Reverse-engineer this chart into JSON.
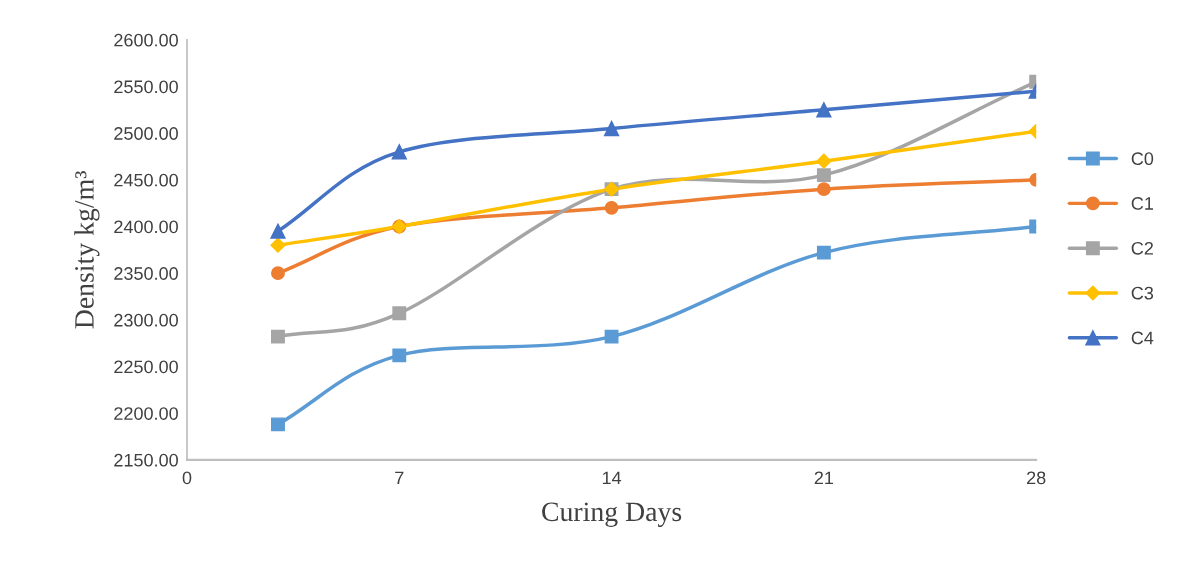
{
  "chart_data": {
    "type": "line",
    "xlabel": "Curing Days",
    "ylabel": "Density kg/m³",
    "x": [
      3,
      7,
      14,
      21,
      28
    ],
    "series": [
      {
        "name": "C0",
        "color": "#5b9bd5",
        "marker": "square",
        "values": [
          2188,
          2262,
          2282,
          2372,
          2400
        ]
      },
      {
        "name": "C1",
        "color": "#ed7d31",
        "marker": "circle",
        "values": [
          2350,
          2400,
          2420,
          2440,
          2450
        ]
      },
      {
        "name": "C2",
        "color": "#a5a5a5",
        "marker": "square",
        "values": [
          2282,
          2307,
          2440,
          2455,
          2555
        ]
      },
      {
        "name": "C3",
        "color": "#ffc000",
        "marker": "diamond",
        "values": [
          2380,
          2400,
          2440,
          2470,
          2502
        ]
      },
      {
        "name": "C4",
        "color": "#4472c4",
        "marker": "triangle",
        "values": [
          2395,
          2480,
          2505,
          2525,
          2545
        ]
      }
    ],
    "xlim": [
      0,
      28
    ],
    "xticks": [
      0,
      7,
      14,
      21,
      28
    ],
    "ylim": [
      2150,
      2600
    ],
    "yticks": [
      {
        "value": 2150,
        "label": "2150.00"
      },
      {
        "value": 2200,
        "label": "2200.00"
      },
      {
        "value": 2250,
        "label": "2250.00"
      },
      {
        "value": 2300,
        "label": "2300.00"
      },
      {
        "value": 2350,
        "label": "2350.00"
      },
      {
        "value": 2400,
        "label": "2400.00"
      },
      {
        "value": 2450,
        "label": "2450.00"
      },
      {
        "value": 2500,
        "label": "2500.00"
      },
      {
        "value": 2550,
        "label": "2550.00"
      },
      {
        "value": 2600,
        "label": "2600.00"
      }
    ],
    "grid": false,
    "legend": "right",
    "line_style": "solid"
  }
}
